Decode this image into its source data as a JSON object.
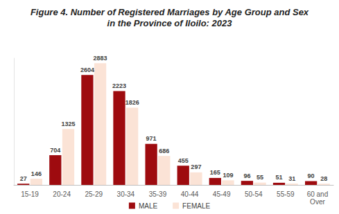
{
  "chart_data": {
    "type": "bar",
    "title": "Figure 4. Number of Registered Marriages by Age Group and Sex\nin the Province of Iloilo: 2023",
    "categories": [
      "15-19",
      "20-24",
      "25-29",
      "30-34",
      "35-39",
      "40-44",
      "45-49",
      "50-54",
      "55-59",
      "60 and\nOver"
    ],
    "series": [
      {
        "name": "MALE",
        "color": "#9e0b0f",
        "values": [
          27,
          704,
          2604,
          2223,
          971,
          455,
          165,
          96,
          51,
          90
        ]
      },
      {
        "name": "FEMALE",
        "color": "#fbe3d6",
        "values": [
          146,
          1325,
          2883,
          1826,
          686,
          297,
          109,
          55,
          31,
          28
        ]
      }
    ],
    "ylim": [
      0,
      3000
    ],
    "grid": false,
    "legend": "bottom",
    "data_labels": true,
    "tick_labels": "x"
  }
}
